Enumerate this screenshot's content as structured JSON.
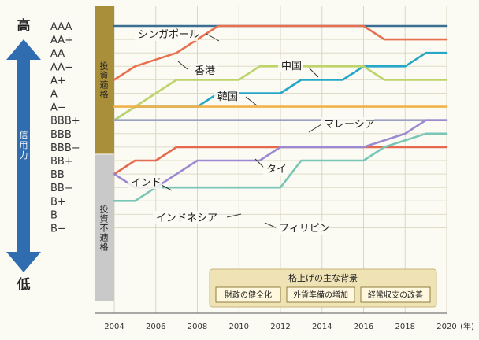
{
  "chart_data": {
    "type": "line",
    "title": "",
    "xlabel": "",
    "ylabel": "",
    "x_ticks": [
      "2004",
      "2006",
      "2008",
      "2010",
      "2012",
      "2014",
      "2016",
      "2018",
      "2020"
    ],
    "x_unit": "(年)",
    "xlim": [
      2004,
      2020
    ],
    "ratings": [
      "AAA",
      "AA+",
      "AA",
      "AA−",
      "A+",
      "A",
      "A−",
      "BBB+",
      "BBB",
      "BBB−",
      "BB+",
      "BB",
      "BB−",
      "B+",
      "B",
      "B−"
    ],
    "grid": true,
    "y_arrow": {
      "top": "高",
      "bottom": "低",
      "middle": "信用力"
    },
    "bands": [
      {
        "label": "投資適格",
        "from": "AAA",
        "to": "BBB−",
        "color": "#a98f3a"
      },
      {
        "label": "投資不適格",
        "from": "BB+",
        "to": "B−",
        "color": "#c9c9c9"
      }
    ],
    "series": [
      {
        "name": "シンガポール",
        "color": "#3a6f93",
        "points": [
          [
            2004,
            "AAA"
          ],
          [
            2020,
            "AAA"
          ]
        ]
      },
      {
        "name": "香港",
        "color": "#e8704f",
        "points": [
          [
            2004,
            "A+"
          ],
          [
            2005,
            "AA−"
          ],
          [
            2007,
            "AA"
          ],
          [
            2008,
            "AA+"
          ],
          [
            2009,
            "AAA"
          ],
          [
            2016,
            "AAA"
          ],
          [
            2017,
            "AA+"
          ],
          [
            2020,
            "AA+"
          ]
        ]
      },
      {
        "name": "中国",
        "color": "#27a7c7",
        "points": [
          [
            2004,
            "BBB+"
          ],
          [
            2005,
            "A−"
          ],
          [
            2008,
            "A−"
          ],
          [
            2009,
            "A"
          ],
          [
            2012,
            "A"
          ],
          [
            2013,
            "A+"
          ],
          [
            2015,
            "A+"
          ],
          [
            2016,
            "AA−"
          ],
          [
            2018,
            "AA−"
          ],
          [
            2019,
            "AA"
          ],
          [
            2020,
            "AA"
          ]
        ]
      },
      {
        "name": "韓国",
        "color": "#bcd46a",
        "points": [
          [
            2004,
            "BBB+"
          ],
          [
            2005,
            "A−"
          ],
          [
            2006,
            "A"
          ],
          [
            2007,
            "A+"
          ],
          [
            2010,
            "A+"
          ],
          [
            2011,
            "AA−"
          ],
          [
            2016,
            "AA−"
          ],
          [
            2017,
            "A+"
          ],
          [
            2020,
            "A+"
          ]
        ]
      },
      {
        "name": "マレーシア",
        "color": "#f0b24a",
        "points": [
          [
            2004,
            "A−"
          ],
          [
            2020,
            "A−"
          ]
        ]
      },
      {
        "name": "タイ",
        "color": "#9aa0c0",
        "points": [
          [
            2004,
            "BBB+"
          ],
          [
            2020,
            "BBB+"
          ]
        ]
      },
      {
        "name": "インド",
        "color": "#e5694f",
        "points": [
          [
            2004,
            "BB"
          ],
          [
            2005,
            "BB+"
          ],
          [
            2006,
            "BB+"
          ],
          [
            2007,
            "BBB−"
          ],
          [
            2020,
            "BBB−"
          ]
        ]
      },
      {
        "name": "インドネシア",
        "color": "#9b8ad1",
        "points": [
          [
            2004,
            "BB"
          ],
          [
            2005,
            "BB−"
          ],
          [
            2006,
            "BB−"
          ],
          [
            2008,
            "BB+"
          ],
          [
            2011,
            "BB+"
          ],
          [
            2012,
            "BBB−"
          ],
          [
            2016,
            "BBB−"
          ],
          [
            2018,
            "BBB"
          ],
          [
            2019,
            "BBB+"
          ],
          [
            2020,
            "BBB+"
          ]
        ]
      },
      {
        "name": "フィリピン",
        "color": "#79c6b7",
        "points": [
          [
            2004,
            "B+"
          ],
          [
            2005,
            "B+"
          ],
          [
            2006,
            "BB−"
          ],
          [
            2012,
            "BB−"
          ],
          [
            2013,
            "BB+"
          ],
          [
            2016,
            "BB+"
          ],
          [
            2017,
            "BBB−"
          ],
          [
            2019,
            "BBB"
          ],
          [
            2020,
            "BBB"
          ]
        ]
      }
    ],
    "legend": {
      "title": "格上げの主な背景",
      "items": [
        "財政の健全化",
        "外貨準備の増加",
        "経常収支の改善"
      ]
    }
  }
}
